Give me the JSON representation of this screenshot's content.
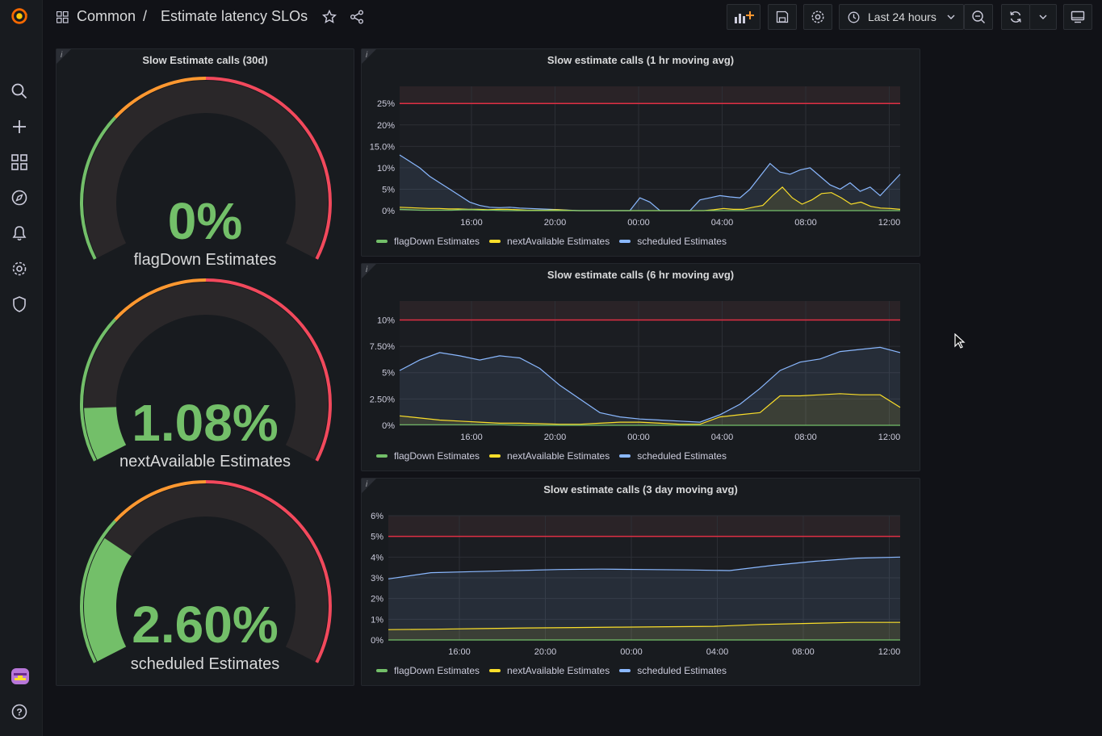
{
  "breadcrumb": {
    "folder": "Common",
    "separator": "/",
    "title": "Estimate latency SLOs"
  },
  "toolbar": {
    "time_range": "Last 24 hours"
  },
  "sidebar": {
    "icons": [
      "grafana-logo-icon",
      "search-icon",
      "plus-icon",
      "dashboards-icon",
      "explore-icon",
      "alerting-icon",
      "settings-icon",
      "shield-icon",
      "user-avatar-icon",
      "help-icon"
    ]
  },
  "colors": {
    "green": "#73bf69",
    "yellow": "#fade2a",
    "orange": "#ff9830",
    "red": "#f2495c",
    "blue": "#5794f2",
    "cyan": "#8ab8ff"
  },
  "gauges": {
    "title": "Slow Estimate calls (30d)",
    "items": [
      {
        "value": "0%",
        "label": "flagDown Estimates",
        "fraction": 0.0
      },
      {
        "value": "1.08%",
        "label": "nextAvailable Estimates",
        "fraction": 0.108
      },
      {
        "value": "2.60%",
        "label": "scheduled Estimates",
        "fraction": 0.26
      }
    ]
  },
  "legend": [
    "flagDown Estimates",
    "nextAvailable Estimates",
    "scheduled Estimates"
  ],
  "chart_data": [
    {
      "type": "line",
      "title": "Slow estimate calls (1 hr moving avg)",
      "x_ticks": [
        "16:00",
        "20:00",
        "00:00",
        "04:00",
        "08:00",
        "12:00"
      ],
      "y_ticks": [
        "0%",
        "5%",
        "10%",
        "15.0%",
        "20%",
        "25%"
      ],
      "ylim": [
        0,
        29
      ],
      "threshold": 25,
      "series": [
        {
          "name": "flagDown Estimates",
          "color": "#73bf69",
          "values": [
            0.3,
            0.2,
            0.1,
            0.1,
            0.1,
            0.1,
            0.2,
            0.2,
            0.1,
            0.1,
            0,
            0,
            0,
            0,
            0,
            0,
            0,
            0,
            0,
            0,
            0,
            0,
            0,
            0,
            0,
            0,
            0,
            0,
            0,
            0,
            0,
            0,
            0,
            0,
            0,
            0,
            0,
            0,
            0,
            0,
            0,
            0,
            0,
            0,
            0,
            0,
            0,
            0,
            0
          ]
        },
        {
          "name": "nextAvailable Estimates",
          "color": "#fade2a",
          "values": [
            0.8,
            0.7,
            0.6,
            0.5,
            0.5,
            0.4,
            0.4,
            0.3,
            0.3,
            0.2,
            0.3,
            0.3,
            0.2,
            0.1,
            0.1,
            0.1,
            0.2,
            0.1,
            0,
            0,
            0,
            0,
            0,
            0,
            0,
            0,
            0,
            0,
            0,
            0,
            0,
            0,
            0.2,
            0.5,
            0.3,
            0.3,
            0.8,
            1.2,
            3.5,
            5.5,
            3.0,
            1.5,
            2.5,
            4.0,
            4.2,
            3.0,
            1.5,
            2.0,
            1.0,
            0.6,
            0.5,
            0.3
          ]
        },
        {
          "name": "scheduled Estimates",
          "color": "#8ab8ff",
          "values": [
            13,
            11.5,
            10,
            8,
            6.5,
            5,
            3.5,
            2,
            1.2,
            0.8,
            0.7,
            0.8,
            0.6,
            0.5,
            0.4,
            0.3,
            0.2,
            0.1,
            0,
            0,
            0,
            0,
            0,
            0,
            3,
            2,
            0,
            0,
            0,
            0,
            2.5,
            3,
            3.5,
            3.2,
            3.0,
            5,
            8,
            11,
            9,
            8.5,
            9.5,
            10,
            8,
            6,
            5,
            6.5,
            4.5,
            5.5,
            3.5,
            6,
            8.5
          ]
        }
      ]
    },
    {
      "type": "line",
      "title": "Slow estimate calls (6 hr moving avg)",
      "x_ticks": [
        "16:00",
        "20:00",
        "00:00",
        "04:00",
        "08:00",
        "12:00"
      ],
      "y_ticks": [
        "0%",
        "2.50%",
        "5%",
        "7.50%",
        "10%"
      ],
      "ylim": [
        0,
        11.8
      ],
      "threshold": 10,
      "series": [
        {
          "name": "flagDown Estimates",
          "color": "#73bf69",
          "values": [
            0.05,
            0.05,
            0.05,
            0.05,
            0.05,
            0.05,
            0,
            0,
            0,
            0,
            0,
            0,
            0,
            0,
            0,
            0,
            0,
            0,
            0,
            0,
            0,
            0,
            0,
            0,
            0,
            0
          ]
        },
        {
          "name": "nextAvailable Estimates",
          "color": "#fade2a",
          "values": [
            0.9,
            0.7,
            0.5,
            0.4,
            0.3,
            0.2,
            0.2,
            0.15,
            0.1,
            0.1,
            0.2,
            0.3,
            0.3,
            0.2,
            0.1,
            0.1,
            0.8,
            1.0,
            1.2,
            2.8,
            2.8,
            2.9,
            3.0,
            2.9,
            2.9,
            1.7
          ]
        },
        {
          "name": "scheduled Estimates",
          "color": "#8ab8ff",
          "values": [
            5.2,
            6.2,
            6.9,
            6.6,
            6.2,
            6.6,
            6.4,
            5.4,
            3.8,
            2.5,
            1.2,
            0.8,
            0.6,
            0.5,
            0.4,
            0.3,
            1.0,
            2.0,
            3.5,
            5.2,
            6.0,
            6.3,
            7.0,
            7.2,
            7.4,
            6.9
          ]
        }
      ]
    },
    {
      "type": "line",
      "title": "Slow estimate calls (3 day moving avg)",
      "x_ticks": [
        "16:00",
        "20:00",
        "00:00",
        "04:00",
        "08:00",
        "12:00"
      ],
      "y_ticks": [
        "0%",
        "1%",
        "2%",
        "3%",
        "4%",
        "5%",
        "6%"
      ],
      "ylim": [
        0,
        6
      ],
      "threshold": 5,
      "series": [
        {
          "name": "flagDown Estimates",
          "color": "#73bf69",
          "values": [
            0,
            0,
            0,
            0,
            0,
            0,
            0,
            0,
            0,
            0,
            0,
            0
          ]
        },
        {
          "name": "nextAvailable Estimates",
          "color": "#fade2a",
          "values": [
            0.5,
            0.52,
            0.55,
            0.58,
            0.6,
            0.62,
            0.64,
            0.66,
            0.75,
            0.8,
            0.85,
            0.85
          ]
        },
        {
          "name": "scheduled Estimates",
          "color": "#8ab8ff",
          "values": [
            2.95,
            3.25,
            3.3,
            3.35,
            3.4,
            3.42,
            3.4,
            3.38,
            3.35,
            3.6,
            3.8,
            3.95,
            4.0
          ]
        }
      ]
    }
  ]
}
